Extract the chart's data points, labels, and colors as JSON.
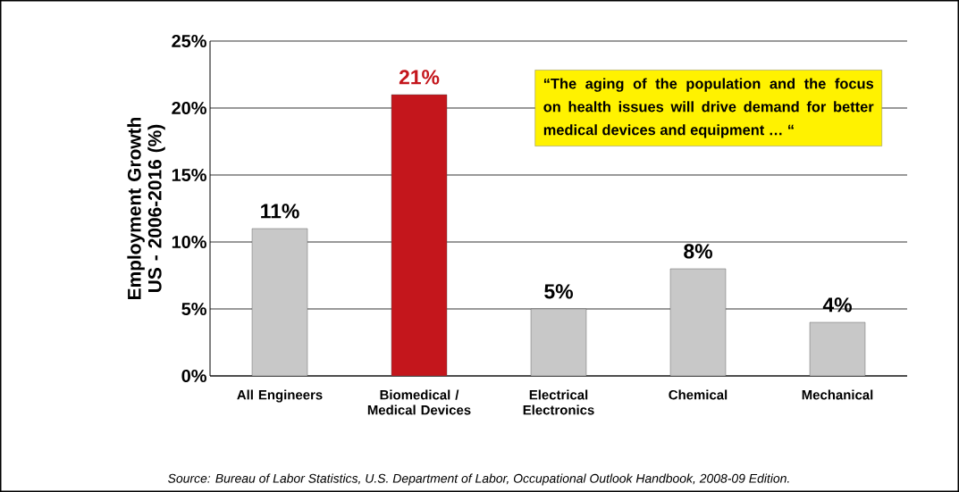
{
  "chart_data": {
    "type": "bar",
    "ylabel": "Employment Growth US - 2006-2016 (%)",
    "categories": [
      "All Engineers",
      "Biomedical / Medical Devices",
      "Electrical Electronics",
      "Chemical",
      "Mechanical"
    ],
    "values": [
      11,
      21,
      5,
      8,
      4
    ],
    "colors": [
      "#c8c8c8",
      "#c4161c",
      "#c8c8c8",
      "#c8c8c8",
      "#c8c8c8"
    ],
    "value_labels": [
      "11%",
      "21%",
      "5%",
      "8%",
      "4%"
    ],
    "ylim": [
      0,
      25
    ],
    "yticks": [
      {
        "value": 0,
        "label": "0%"
      },
      {
        "value": 5,
        "label": "5%"
      },
      {
        "value": 10,
        "label": "10%"
      },
      {
        "value": 15,
        "label": "15%"
      },
      {
        "value": 20,
        "label": "20%"
      },
      {
        "value": 25,
        "label": "25%"
      }
    ],
    "grid": "y",
    "annotations": [
      "“The aging of the population and the focus on health issues will drive demand for better medical devices and equipment … “",
      "Source: Bureau of Labor Statistics, U.S. Department of Labor, Occupational Outlook Handbook, 2008-09 Edition."
    ]
  }
}
